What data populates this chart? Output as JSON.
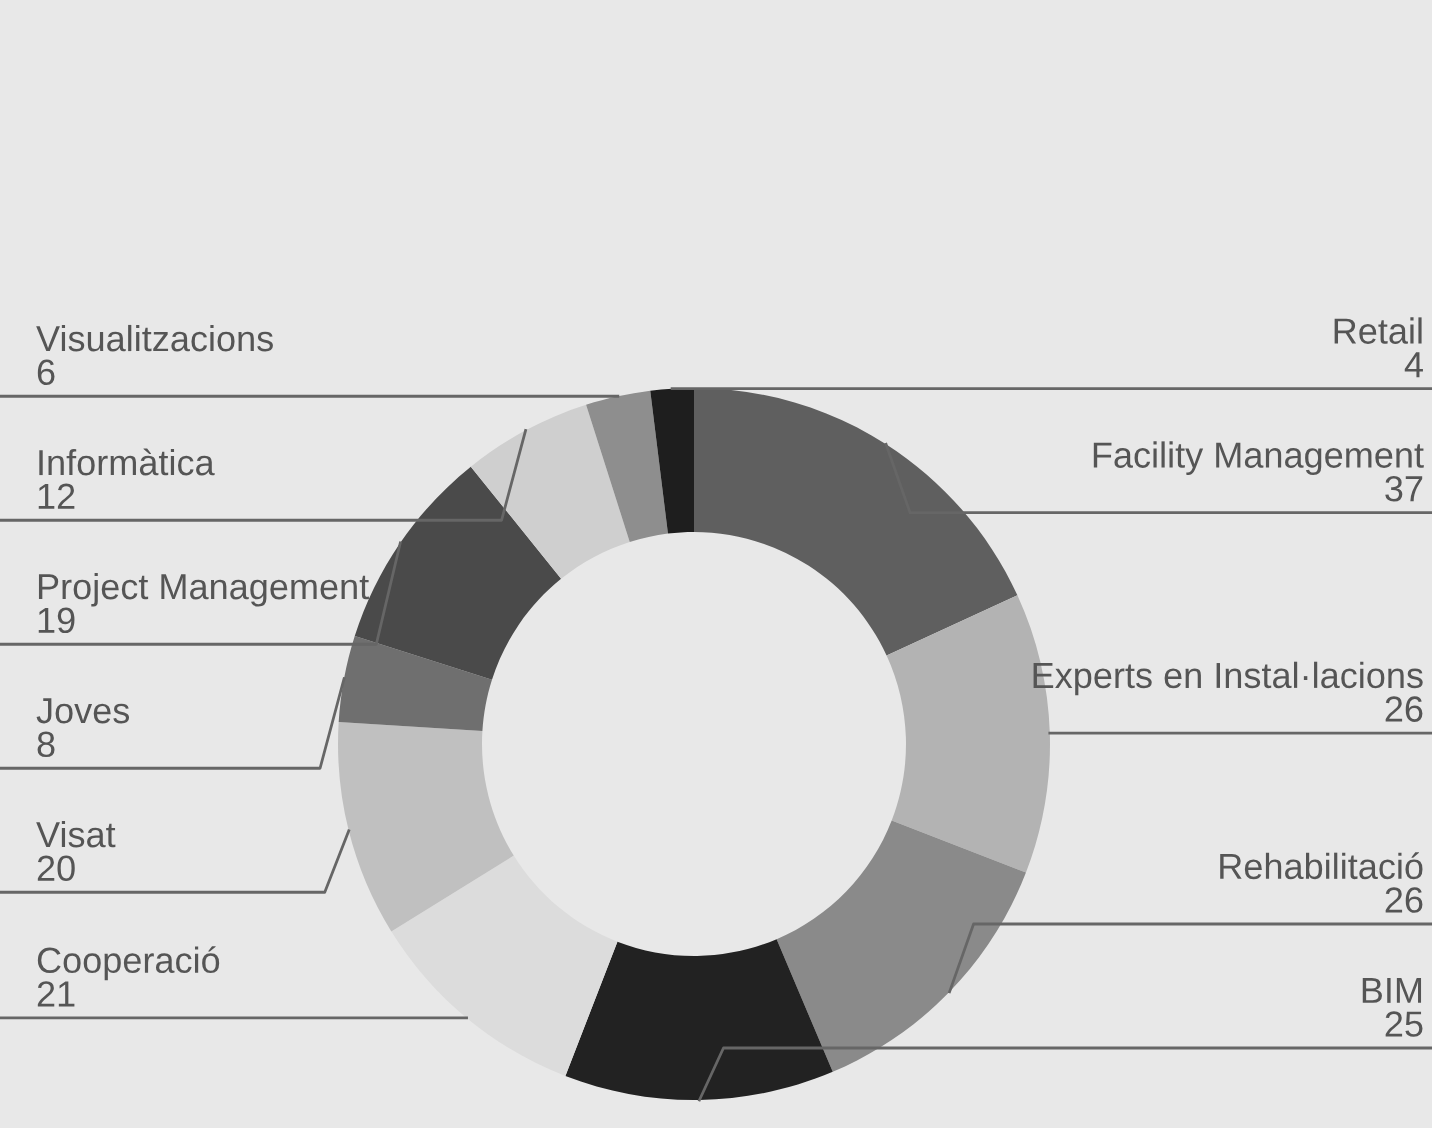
{
  "chart_data": {
    "type": "donut",
    "categories": [
      "Facility Management",
      "Experts en Instal·lacions",
      "Rehabilitació",
      "BIM",
      "Cooperació",
      "Visat",
      "Joves",
      "Project Management",
      "Informàtica",
      "Visualitzacions",
      "Retail"
    ],
    "values": [
      37,
      26,
      26,
      25,
      21,
      20,
      8,
      19,
      12,
      6,
      4
    ],
    "colors": [
      "#5f5f5f",
      "#b3b3b3",
      "#8a8a8a",
      "#222222",
      "#dcdcdc",
      "#c0c0c0",
      "#6f6f6f",
      "#4a4a4a",
      "#cfcfcf",
      "#8e8e8e",
      "#1e1e1e"
    ],
    "data_labels": true
  }
}
